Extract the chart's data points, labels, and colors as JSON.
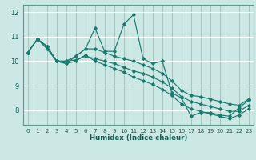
{
  "xlabel": "Humidex (Indice chaleur)",
  "background_color": "#cce8e5",
  "grid_color_white": "#ffffff",
  "grid_color_red": "#e89090",
  "line_color": "#1a7a6e",
  "xlim": [
    -0.5,
    23.5
  ],
  "ylim": [
    7.4,
    12.3
  ],
  "yticks": [
    8,
    9,
    10,
    11,
    12
  ],
  "xticks": [
    0,
    1,
    2,
    3,
    4,
    5,
    6,
    7,
    8,
    9,
    10,
    11,
    12,
    13,
    14,
    15,
    16,
    17,
    18,
    19,
    20,
    21,
    22,
    23
  ],
  "lines": [
    {
      "x": [
        0,
        1,
        2,
        3,
        4,
        5,
        6,
        7,
        8,
        9,
        10,
        11,
        12,
        13,
        14,
        15,
        16,
        17,
        18,
        19,
        20,
        21,
        22,
        23
      ],
      "y": [
        10.35,
        10.9,
        10.6,
        10.0,
        9.9,
        10.2,
        10.5,
        11.35,
        10.4,
        10.4,
        11.5,
        11.9,
        10.1,
        9.9,
        10.0,
        8.7,
        8.5,
        7.75,
        7.9,
        7.9,
        7.8,
        7.75,
        8.1,
        8.4
      ]
    },
    {
      "x": [
        0,
        1,
        2,
        3,
        4,
        5,
        6,
        7,
        8,
        9,
        10,
        11,
        12,
        13,
        14,
        15,
        16,
        17,
        18,
        19,
        20,
        21,
        22,
        23
      ],
      "y": [
        10.35,
        10.9,
        10.6,
        10.0,
        10.0,
        10.2,
        10.5,
        10.5,
        10.35,
        10.2,
        10.1,
        10.0,
        9.85,
        9.7,
        9.5,
        9.2,
        8.8,
        8.6,
        8.55,
        8.45,
        8.35,
        8.25,
        8.2,
        8.45
      ]
    },
    {
      "x": [
        0,
        1,
        2,
        3,
        4,
        5,
        6,
        7,
        8,
        9,
        10,
        11,
        12,
        13,
        14,
        15,
        16,
        17,
        18,
        19,
        20,
        21,
        22,
        23
      ],
      "y": [
        10.35,
        10.9,
        10.6,
        10.0,
        10.0,
        10.05,
        10.2,
        10.1,
        10.0,
        9.9,
        9.75,
        9.6,
        9.5,
        9.35,
        9.15,
        8.9,
        8.55,
        8.35,
        8.25,
        8.15,
        8.05,
        7.95,
        7.95,
        8.2
      ]
    },
    {
      "x": [
        0,
        1,
        2,
        3,
        4,
        5,
        6,
        7,
        8,
        9,
        10,
        11,
        12,
        13,
        14,
        15,
        16,
        17,
        18,
        19,
        20,
        21,
        22,
        23
      ],
      "y": [
        10.35,
        10.9,
        10.5,
        10.0,
        9.9,
        10.0,
        10.25,
        10.0,
        9.85,
        9.7,
        9.55,
        9.35,
        9.2,
        9.05,
        8.85,
        8.6,
        8.25,
        8.05,
        7.95,
        7.85,
        7.75,
        7.65,
        7.8,
        8.05
      ]
    }
  ]
}
